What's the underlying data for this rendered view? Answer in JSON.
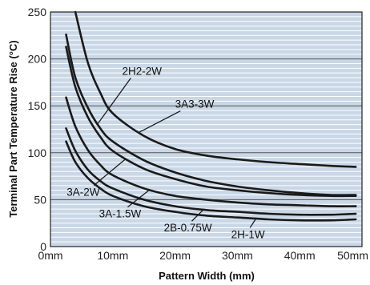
{
  "chart_data": {
    "type": "line",
    "title": "",
    "xlabel": "Pattern Width (mm)",
    "ylabel": "Terminal Part Temperature Rise (°C)",
    "xlim": [
      0,
      50
    ],
    "ylim": [
      0,
      250
    ],
    "x_ticks": [
      0,
      10,
      20,
      30,
      40,
      50
    ],
    "x_tick_labels": [
      "0mm",
      "10mm",
      "20mm",
      "30mm",
      "40mm",
      "50mm"
    ],
    "y_ticks": [
      0,
      50,
      100,
      150,
      200,
      250
    ],
    "y_tick_labels": [
      "0",
      "50",
      "100",
      "150",
      "200",
      "250"
    ],
    "grid": true,
    "colors": {
      "plot_bg": "#c9d7e6",
      "line": "#1a1a1a"
    },
    "series": [
      {
        "name": "3A3-3W",
        "x": [
          4,
          6,
          8,
          10,
          15,
          20,
          25,
          30,
          35,
          40,
          45,
          49
        ],
        "y": [
          250,
          196,
          164,
          142,
          118,
          104,
          97,
          93,
          90,
          88,
          86,
          85
        ]
      },
      {
        "name": "2H2-2W",
        "x": [
          2.5,
          4,
          6,
          8,
          10,
          15,
          20,
          25,
          30,
          35,
          40,
          45,
          49
        ],
        "y": [
          226,
          180,
          148,
          126,
          112,
          92,
          79,
          70,
          64,
          60,
          57,
          55,
          55
        ]
      },
      {
        "name": "3A-2W",
        "x": [
          2.5,
          4,
          6,
          8,
          10,
          15,
          20,
          25,
          30,
          35,
          40,
          45,
          49
        ],
        "y": [
          213,
          170,
          138,
          117,
          102,
          83,
          72,
          64,
          60,
          57,
          55,
          54,
          54
        ]
      },
      {
        "name": "3A-1.5W",
        "x": [
          2.5,
          4,
          6,
          8,
          10,
          15,
          20,
          25,
          30,
          35,
          40,
          45,
          49
        ],
        "y": [
          159,
          128,
          103,
          87,
          76,
          62,
          54,
          50,
          47,
          45,
          44,
          43,
          43
        ]
      },
      {
        "name": "2B-0.75W",
        "x": [
          2.5,
          4,
          6,
          8,
          10,
          15,
          20,
          25,
          30,
          35,
          40,
          45,
          49
        ],
        "y": [
          126,
          102,
          82,
          70,
          62,
          50,
          43,
          39,
          37,
          35,
          34,
          34,
          35
        ]
      },
      {
        "name": "2H-1W",
        "x": [
          2.5,
          4,
          6,
          8,
          10,
          15,
          20,
          25,
          30,
          35,
          40,
          45,
          49
        ],
        "y": [
          112,
          90,
          73,
          62,
          54,
          43,
          37,
          33,
          31,
          29,
          28,
          28,
          29
        ]
      }
    ],
    "annotations": [
      {
        "text": "2H2-2W",
        "series": "2H2-2W",
        "label_x": 11.5,
        "label_y": 183,
        "target_x": 7.5,
        "target_y": 130
      },
      {
        "text": "3A3-3W",
        "series": "3A3-3W",
        "label_x": 20,
        "label_y": 148,
        "target_x": 14,
        "target_y": 121
      },
      {
        "text": "3A-2W",
        "series": "3A-2W",
        "label_x": 2.6,
        "label_y": 54,
        "target_x": 12,
        "target_y": 93
      },
      {
        "text": "3A-1.5W",
        "series": "3A-1.5W",
        "label_x": 7.8,
        "label_y": 31,
        "target_x": 16,
        "target_y": 61
      },
      {
        "text": "2B-0.75W",
        "series": "2B-0.75W",
        "label_x": 18.2,
        "label_y": 16,
        "target_x": 24.5,
        "target_y": 39
      },
      {
        "text": "2H-1W",
        "series": "2H-1W",
        "label_x": 29,
        "label_y": 9,
        "target_x": 33,
        "target_y": 30
      }
    ]
  }
}
